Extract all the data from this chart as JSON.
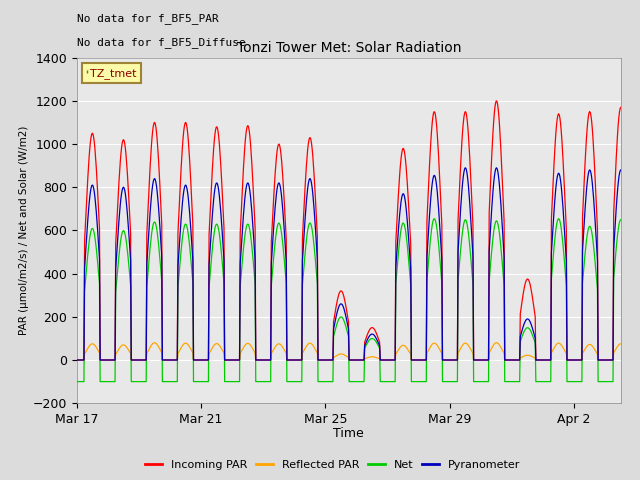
{
  "title": "Tonzi Tower Met: Solar Radiation",
  "xlabel": "Time",
  "ylabel": "PAR (μmol/m2/s) / Net and Solar (W/m2)",
  "ylim": [
    -200,
    1400
  ],
  "yticks": [
    -200,
    0,
    200,
    400,
    600,
    800,
    1000,
    1200,
    1400
  ],
  "colors": {
    "incoming": "#FF0000",
    "reflected": "#FFA500",
    "net": "#00CC00",
    "pyranometer": "#0000BB"
  },
  "legend_labels": [
    "Incoming PAR",
    "Reflected PAR",
    "Net",
    "Pyranometer"
  ],
  "annotation_text1": "No data for f_BF5_PAR",
  "annotation_text2": "No data for f_BF5_Diffuse",
  "legend_box_label": "TZ_tmet",
  "background_color": "#DCDCDC",
  "plot_bg_color": "#E8E8E8",
  "grid_color": "#FFFFFF",
  "num_days": 17.5,
  "incoming_peaks": [
    1050,
    1020,
    1100,
    1100,
    1080,
    1085,
    1000,
    1030,
    320,
    150,
    980,
    1150,
    1150,
    1200,
    375,
    1140,
    1150,
    1170
  ],
  "pyranometer_peaks": [
    810,
    800,
    840,
    810,
    820,
    820,
    820,
    840,
    260,
    120,
    770,
    855,
    890,
    890,
    190,
    865,
    880,
    880
  ],
  "net_peaks": [
    610,
    600,
    640,
    630,
    630,
    630,
    635,
    635,
    200,
    100,
    635,
    655,
    650,
    645,
    150,
    655,
    620,
    650
  ],
  "reflected_peaks": [
    75,
    70,
    80,
    78,
    76,
    77,
    75,
    78,
    28,
    15,
    68,
    78,
    78,
    80,
    22,
    78,
    72,
    75
  ],
  "xticklabels": [
    "Mar 17",
    "Mar 21",
    "Mar 25",
    "Mar 29",
    "Apr 2"
  ],
  "xtick_positions": [
    0,
    4,
    8,
    12,
    16
  ]
}
